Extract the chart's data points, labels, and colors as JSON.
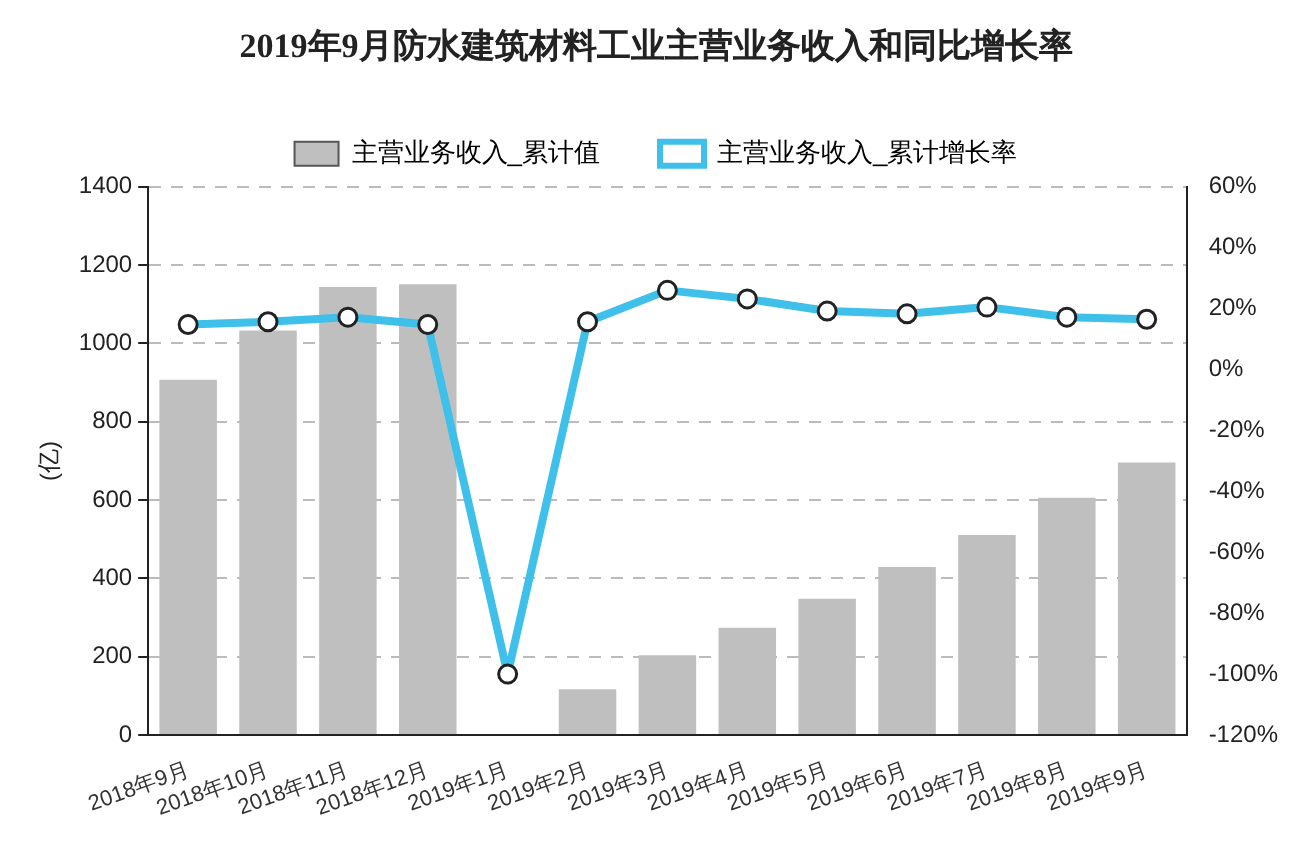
{
  "chart_data": {
    "type": "bar",
    "title": "2019年9月防水建筑材料工业主营业务收入和同比增长率",
    "ylabel": "(亿)",
    "categories": [
      "2018年9月",
      "2018年10月",
      "2018年11月",
      "2018年12月",
      "2019年1月",
      "2019年2月",
      "2019年3月",
      "2019年4月",
      "2019年5月",
      "2019年6月",
      "2019年7月",
      "2019年8月",
      "2019年9月"
    ],
    "series": [
      {
        "name": "主营业务收入_累计值",
        "color": "#c0bfc0",
        "values": [
          907,
          1033,
          1144,
          1151,
          null,
          117,
          204,
          274,
          348,
          429,
          511,
          606,
          696
        ]
      },
      {
        "name": "主营业务收入_累计增长率",
        "type": "line",
        "axis": "y2",
        "color": "#3ec0ea",
        "marker": "circle",
        "values": [
          14.8,
          15.7,
          17.2,
          14.8,
          -100,
          15.7,
          26.0,
          23.2,
          19.2,
          18.3,
          20.5,
          17.2,
          16.5
        ]
      }
    ],
    "ylim": [
      0,
      1400
    ],
    "yticks": [
      0,
      200,
      400,
      600,
      800,
      1000,
      1200,
      1400
    ],
    "y2lim": [
      -120,
      60
    ],
    "y2ticks": [
      {
        "value": -120,
        "label": "-120%"
      },
      {
        "value": -100,
        "label": "-100%"
      },
      {
        "value": -80,
        "label": "-80%"
      },
      {
        "value": -60,
        "label": "-60%"
      },
      {
        "value": -40,
        "label": "-40%"
      },
      {
        "value": -20,
        "label": "-20%"
      },
      {
        "value": 0,
        "label": "0%"
      },
      {
        "value": 20,
        "label": "20%"
      },
      {
        "value": 40,
        "label": "40%"
      },
      {
        "value": 60,
        "label": "60%"
      }
    ],
    "grid": "y",
    "legend": "top"
  }
}
